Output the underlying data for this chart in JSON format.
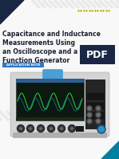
{
  "bg_color": "#f8f8f8",
  "title_lines": [
    "Capacitance and Inductance",
    "Measurements Using",
    "an Oscilloscope and a",
    "Function Generator"
  ],
  "title_color": "#1c2033",
  "title_fontsize": 5.5,
  "pdf_box_color": "#1a2744",
  "pdf_text": "PDF",
  "pdf_text_color": "#ffffff",
  "pdf_fontsize": 9,
  "tag_color": "#2e7bbf",
  "tag_text": "APPLICATION NOTE",
  "tag_text_color": "#ffffff",
  "tag_fontsize": 2.8,
  "stripe_color": "#e3e3e3",
  "accent_yellow": "#b8a800",
  "accent_teal": "#007f9f",
  "corner_tri_color": "#1a2744",
  "osc_body_color": "#d4d4d4",
  "osc_screen_color": "#0d1810",
  "osc_handle_color": "#4a9fd4",
  "osc_dark_panel": "#252525",
  "osc_bottom_strip": "#c0c0c0",
  "wave1_color": "#20e020",
  "wave2_color": "#2090e0",
  "knob_color": "#404040",
  "knob_highlight": "#707070",
  "screen_blue_bar": "#2a6090"
}
